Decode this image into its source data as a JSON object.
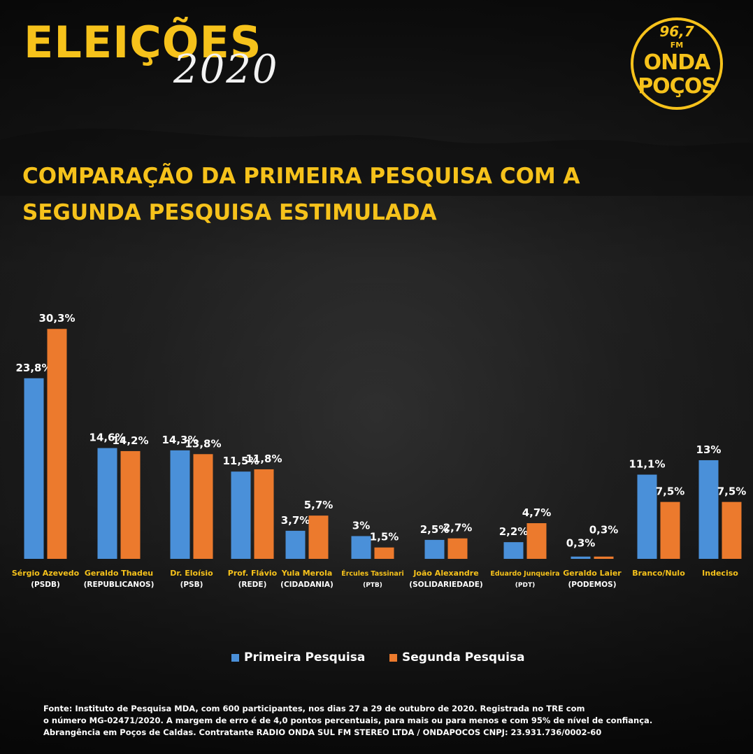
{
  "header": {
    "title": "ELEIÇÕES",
    "year": "2020",
    "logo": {
      "frequency": "96,7",
      "band": "FM",
      "name_line1": "ONDA",
      "name_line2": "POÇOS"
    }
  },
  "subtitle": {
    "line1": "COMPARAÇÃO DA PRIMEIRA PESQUISA COM A",
    "line2": "SEGUNDA PESQUISA ESTIMULADA"
  },
  "chart_data": {
    "type": "bar",
    "title": "COMPARAÇÃO DA PRIMEIRA PESQUISA COM A SEGUNDA PESQUISA ESTIMULADA",
    "categories": [
      {
        "name": "Sérgio Azevedo",
        "party": "(PSDB)"
      },
      {
        "name": "Geraldo Thadeu",
        "party": "(REPUBLICANOS)"
      },
      {
        "name": "Dr. Eloísio",
        "party": "(PSB)"
      },
      {
        "name": "Prof. Flávio",
        "party": "(REDE)"
      },
      {
        "name": "Yula Merola",
        "party": "(CIDADANIA)"
      },
      {
        "name": "Ércules Tassinari",
        "party": "(PTB)"
      },
      {
        "name": "João Alexandre",
        "party": "(SOLIDARIEDADE)"
      },
      {
        "name": "Eduardo Junqueira",
        "party": "(PDT)"
      },
      {
        "name": "Geraldo Laier",
        "party": "(PODEMOS)"
      },
      {
        "name": "Branco/Nulo",
        "party": ""
      },
      {
        "name": "Indeciso",
        "party": ""
      }
    ],
    "series": [
      {
        "name": "Primeira Pesquisa",
        "color": "#4a90d9",
        "values": [
          23.8,
          14.6,
          14.3,
          11.5,
          3.7,
          3.0,
          2.5,
          2.2,
          0.3,
          11.1,
          13.0
        ],
        "labels": [
          "23,8%",
          "14,6%",
          "14,3%",
          "11,5%",
          "3,7%",
          "3%",
          "2,5%",
          "2,2%",
          "0,3%",
          "11,1%",
          "13%"
        ]
      },
      {
        "name": "Segunda Pesquisa",
        "color": "#ec7a2d",
        "values": [
          30.3,
          14.2,
          13.8,
          11.8,
          5.7,
          1.5,
          2.7,
          4.7,
          0.3,
          7.5,
          7.5
        ],
        "labels": [
          "30,3%",
          "14,2%",
          "13,8%",
          "11,8%",
          "5,7%",
          "1,5%",
          "2,7%",
          "4,7%",
          "0,3%",
          "7,5%",
          "7,5%"
        ]
      }
    ],
    "ylim": [
      0,
      30.3
    ],
    "grid": false,
    "legend_position": "bottom"
  },
  "legend": {
    "items": [
      {
        "label": "Primeira Pesquisa",
        "color": "#4a90d9"
      },
      {
        "label": "Segunda Pesquisa",
        "color": "#ec7a2d"
      }
    ]
  },
  "footer": {
    "line1": "Fonte: Instituto de Pesquisa MDA, com 600 participantes, nos dias 27 a 29 de outubro de 2020. Registrada no TRE com",
    "line2": "o número MG-02471/2020. A margem de erro é de 4,0 pontos percentuais, para mais ou para menos e com 95% de nível de confiança.",
    "line3": "Abrangência em Poços de Caldas. Contratante RADIO ONDA SUL FM STEREO LTDA / ONDAPOCOS CNPJ: 23.931.736/0002-60"
  }
}
